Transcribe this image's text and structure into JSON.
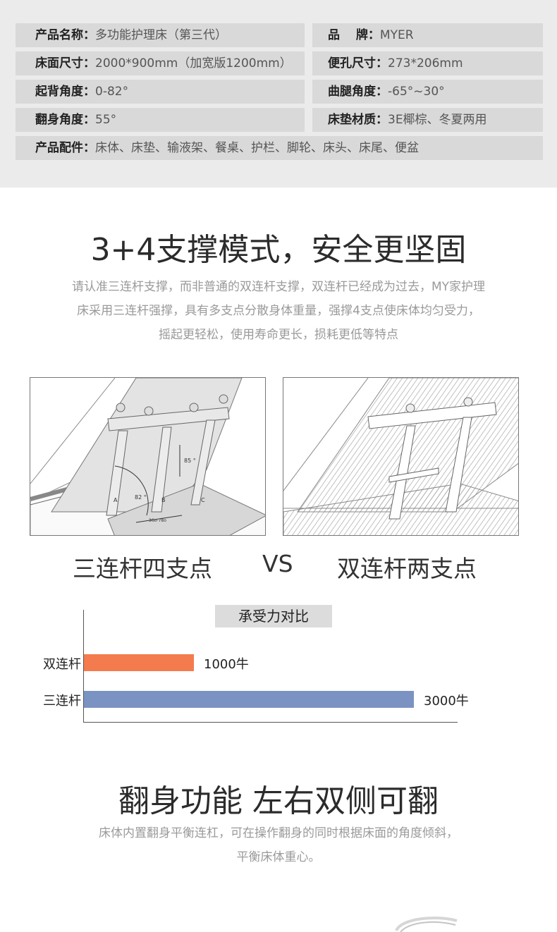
{
  "specs": {
    "name_key": "产品名称：",
    "name_val": "多功能护理床（第三代）",
    "brand_key": "品　 牌：",
    "brand_val": "MYER",
    "size_key": "床面尺寸：",
    "size_val": "2000*900mm（加宽版1200mm）",
    "hole_key": "便孔尺寸：",
    "hole_val": "273*206mm",
    "back_key": "起背角度：",
    "back_val": "0-82°",
    "leg_key": "曲腿角度：",
    "leg_val": "-65°~30°",
    "turn_key": "翻身角度：",
    "turn_val": "55°",
    "mat_key": "床垫材质：",
    "mat_val": "3E椰棕、冬夏两用",
    "acc_key": "产品配件：",
    "acc_val": "床体、床垫、输液架、餐桌、护栏、脚轮、床头、床尾、便盆"
  },
  "support": {
    "title": "3+4支撑模式，安全更坚固",
    "desc_1": "请认准三连杆支撑，而非普通的双连杆支撑，双连杆已经成为过去，MY家护理",
    "desc_2": "床采用三连杆强撑，具有多支点分散身体重量，强撑4支点使床体均匀受力，",
    "desc_3": "摇起更轻松，使用寿命更长，损耗更低等特点"
  },
  "diagram": {
    "angle_85": "85 °",
    "angle_82": "82 °",
    "label_a": "A",
    "label_b": "B",
    "label_c": "C",
    "dim": "36o-78o"
  },
  "compare": {
    "left": "三连杆四支点",
    "vs": "VS",
    "right": "双连杆两支点"
  },
  "chart_data": {
    "type": "bar",
    "orientation": "horizontal",
    "title": "承受力对比",
    "categories": [
      "双连杆",
      "三连杆"
    ],
    "values": [
      1000,
      3000
    ],
    "value_labels": [
      "1000牛",
      "3000牛"
    ],
    "colors": [
      "#f47b4e",
      "#7b93c2"
    ],
    "xlim": [
      0,
      3400
    ],
    "grid": false
  },
  "turn": {
    "title": "翻身功能  左右双侧可翻",
    "desc_1": "床体内置翻身平衡连杠，可在操作翻身的同时根据床面的角度倾斜，",
    "desc_2": "平衡床体重心。"
  }
}
